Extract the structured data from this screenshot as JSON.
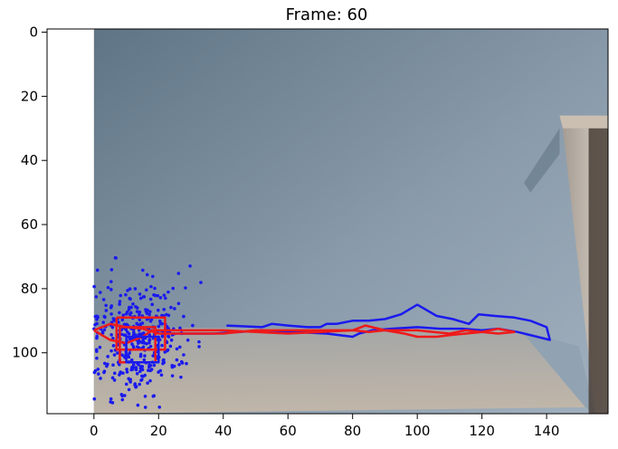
{
  "chart_data": {
    "type": "scatter",
    "title": "Frame: 60",
    "xlabel": "",
    "ylabel": "",
    "xlim": [
      -14.5,
      159
    ],
    "ylim": [
      119,
      -1
    ],
    "y_inverted": true,
    "grid": false,
    "xticks": [
      "0",
      "20",
      "40",
      "60",
      "80",
      "100",
      "120",
      "140"
    ],
    "yticks": [
      "0",
      "20",
      "40",
      "60",
      "80",
      "100"
    ],
    "image_extent": {
      "x": [
        0,
        159
      ],
      "y": [
        119,
        -1
      ]
    },
    "colors": {
      "points": "#1a1aee",
      "blue_track": "#1a1aee",
      "red_track": "#ee1a1a",
      "wall": "#8795a3",
      "floor": "#b4a99c"
    },
    "series": [
      {
        "kind": "blue_track",
        "x": [
          41,
          52,
          55,
          60,
          66,
          70,
          72,
          75,
          80,
          85,
          90,
          95,
          100,
          106,
          111,
          116,
          119,
          124,
          130,
          135,
          140,
          141,
          131,
          125,
          120,
          114,
          107,
          100,
          92,
          86,
          82,
          80,
          72,
          62,
          52,
          45,
          37,
          29,
          24,
          20,
          16
        ],
        "y": [
          91.5,
          92,
          91,
          91.5,
          92,
          92,
          91,
          91,
          90,
          90,
          89.5,
          88,
          85,
          88.5,
          89.5,
          91,
          88,
          88.5,
          89,
          90,
          92,
          96,
          93.5,
          92.5,
          93,
          92.5,
          92.5,
          92,
          92.5,
          93,
          94,
          95,
          94,
          93.5,
          93,
          93.5,
          94,
          94,
          94,
          93,
          93
        ]
      },
      {
        "kind": "red_track",
        "x": [
          0,
          5,
          10,
          15,
          18,
          22,
          30,
          40,
          50,
          60,
          70,
          80,
          84,
          90,
          96,
          100,
          106,
          110,
          115,
          120,
          125,
          130,
          125,
          120,
          115,
          110,
          105,
          100,
          95,
          90,
          85,
          80,
          70,
          60,
          50,
          40,
          30,
          20,
          15,
          10,
          5,
          0
        ],
        "y": [
          93,
          96,
          97,
          95,
          93,
          93,
          93,
          93,
          93.5,
          94,
          93.5,
          93,
          91.5,
          93,
          94,
          95,
          95,
          94.5,
          94,
          93.5,
          94,
          93.5,
          92.5,
          93.5,
          93,
          94,
          93.5,
          93,
          93,
          93,
          93.5,
          93,
          93,
          93,
          93,
          94,
          94,
          94,
          92.5,
          92,
          91,
          93
        ]
      },
      {
        "kind": "bbox",
        "color": "red",
        "x": [
          7,
          22,
          22,
          7,
          7
        ],
        "y": [
          89,
          89,
          99,
          99,
          89
        ]
      },
      {
        "kind": "bbox",
        "color": "red",
        "x": [
          8,
          19,
          19,
          8,
          8
        ],
        "y": [
          92,
          92,
          103,
          103,
          92
        ]
      },
      {
        "kind": "bbox",
        "color": "blue",
        "x": [
          10,
          20,
          20,
          10,
          10
        ],
        "y": [
          95,
          95,
          103,
          103,
          95
        ]
      },
      {
        "kind": "points",
        "count": 400,
        "center": [
          14,
          96
        ],
        "spread": [
          7,
          9
        ]
      }
    ]
  }
}
